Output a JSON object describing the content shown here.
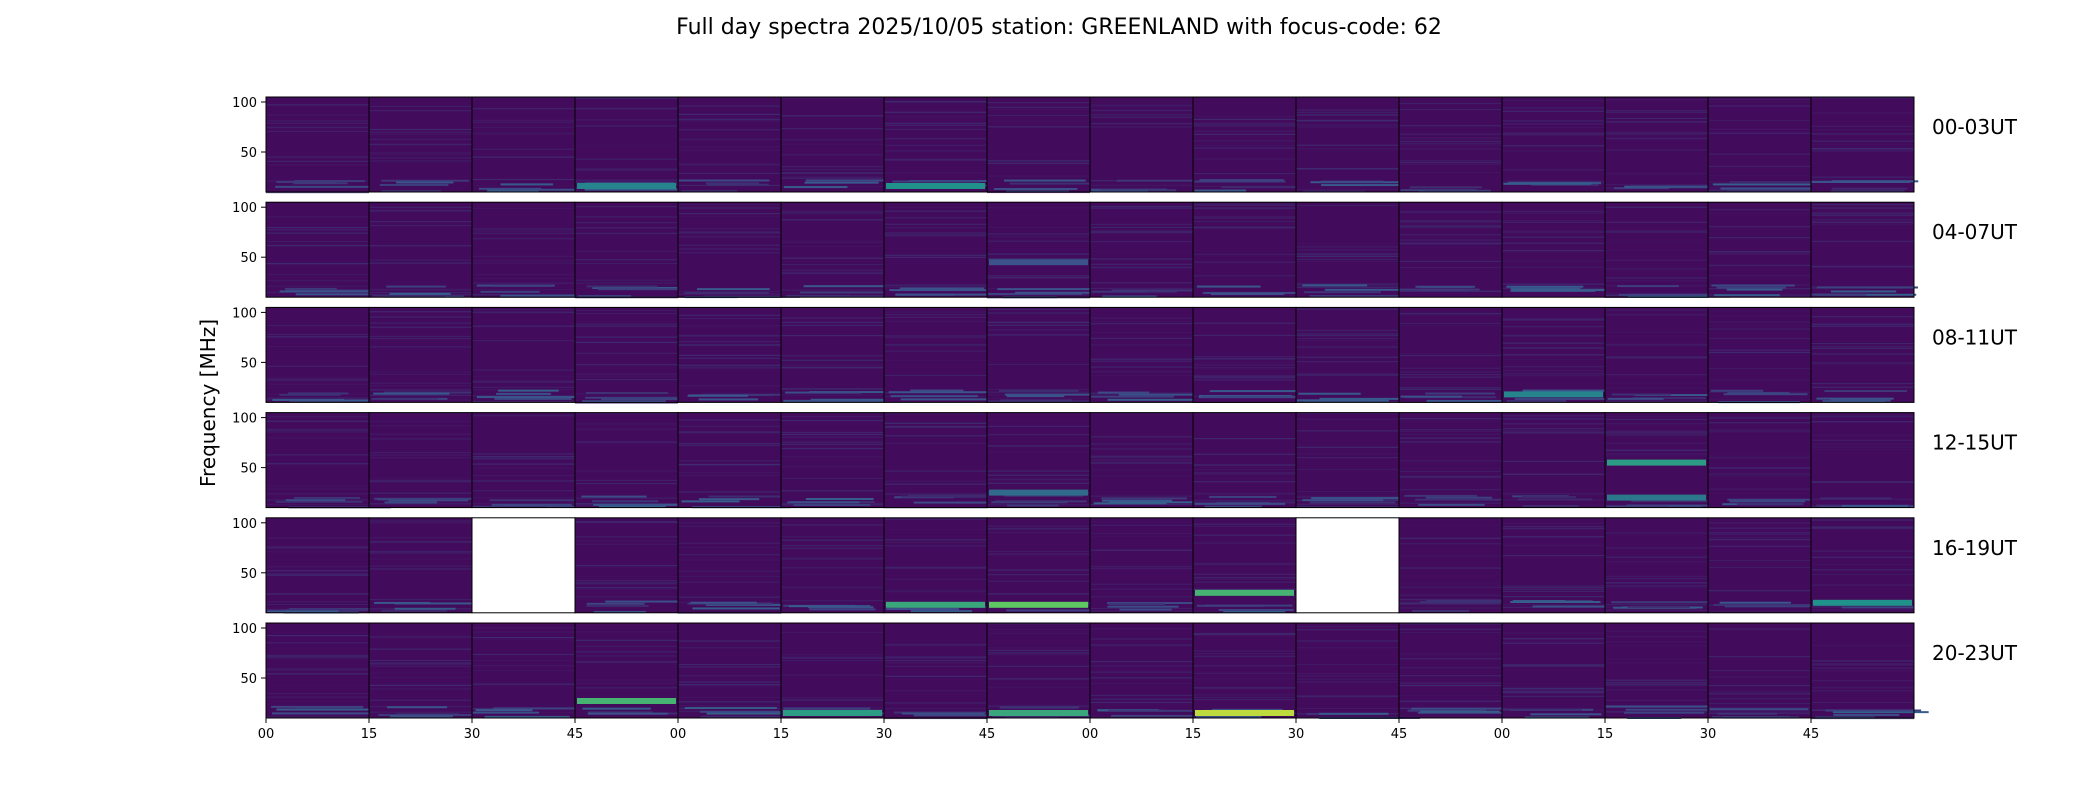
{
  "chart_data": {
    "type": "heatmap",
    "title": "Full day spectra 2025/10/05 station: GREENLAND with focus-code: 62",
    "ylabel": "Frequency [MHz]",
    "xlabel": "",
    "y_ticks": [
      "100",
      "50"
    ],
    "ylim": [
      10,
      105
    ],
    "x_tick_labels": [
      "00",
      "15",
      "30",
      "45",
      "00",
      "15",
      "30",
      "45",
      "00",
      "15",
      "30",
      "45",
      "00",
      "15",
      "30",
      "45"
    ],
    "panels_per_row": 16,
    "minutes_per_panel": 15,
    "colormap": [
      "#440154",
      "#3b528b",
      "#21918c",
      "#5ec962",
      "#fde725"
    ],
    "rows": [
      {
        "label": "00-03UT",
        "missing": []
      },
      {
        "label": "04-07UT",
        "missing": []
      },
      {
        "label": "08-11UT",
        "missing": []
      },
      {
        "label": "12-15UT",
        "missing": []
      },
      {
        "label": "16-19UT",
        "missing": [
          2,
          10
        ]
      },
      {
        "label": "20-23UT",
        "missing": []
      }
    ],
    "highlights": [
      {
        "row": 0,
        "panel": 3,
        "freq": 16,
        "level": 0.45
      },
      {
        "row": 0,
        "panel": 6,
        "freq": 16,
        "level": 0.5
      },
      {
        "row": 1,
        "panel": 7,
        "freq": 45,
        "level": 0.25
      },
      {
        "row": 2,
        "panel": 12,
        "freq": 18,
        "level": 0.45
      },
      {
        "row": 3,
        "panel": 7,
        "freq": 25,
        "level": 0.35
      },
      {
        "row": 3,
        "panel": 13,
        "freq": 55,
        "level": 0.55
      },
      {
        "row": 3,
        "panel": 13,
        "freq": 20,
        "level": 0.4
      },
      {
        "row": 4,
        "panel": 6,
        "freq": 18,
        "level": 0.6
      },
      {
        "row": 4,
        "panel": 7,
        "freq": 18,
        "level": 0.75
      },
      {
        "row": 4,
        "panel": 9,
        "freq": 30,
        "level": 0.65
      },
      {
        "row": 4,
        "panel": 15,
        "freq": 20,
        "level": 0.5
      },
      {
        "row": 5,
        "panel": 3,
        "freq": 27,
        "level": 0.65
      },
      {
        "row": 5,
        "panel": 5,
        "freq": 15,
        "level": 0.55
      },
      {
        "row": 5,
        "panel": 7,
        "freq": 15,
        "level": 0.6
      },
      {
        "row": 5,
        "panel": 9,
        "freq": 15,
        "level": 0.9
      }
    ]
  }
}
